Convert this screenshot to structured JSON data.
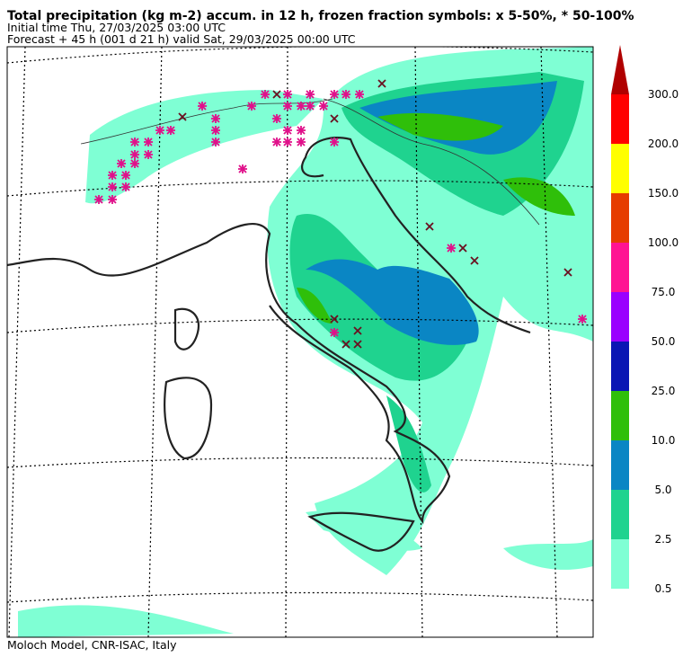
{
  "header": {
    "title": "Total precipitation (kg m-2) accum. in 12 h, frozen fraction symbols: x 5-50%, * 50-100%",
    "initial_time": "Initial time  Thu, 27/03/2025  03:00 UTC",
    "forecast": "Forecast  +  45 h  (001 d 21 h)  valid Sat, 29/03/2025 00:00 UTC"
  },
  "colorbar": {
    "labels": [
      "0.5",
      "2.5",
      "5.0",
      "10.0",
      "25.0",
      "50.0",
      "75.0",
      "100.0",
      "150.0",
      "200.0",
      "300.0"
    ],
    "colors": [
      "#7fffd4",
      "#1fd38f",
      "#0a86c4",
      "#2fbf0a",
      "#0a16b4",
      "#9a00ff",
      "#ff1493",
      "#e63c00",
      "#ffff00",
      "#ff0000"
    ],
    "extend_color": "#b00000"
  },
  "footer": "Moloch Model, CNR-ISAC, Italy"
}
